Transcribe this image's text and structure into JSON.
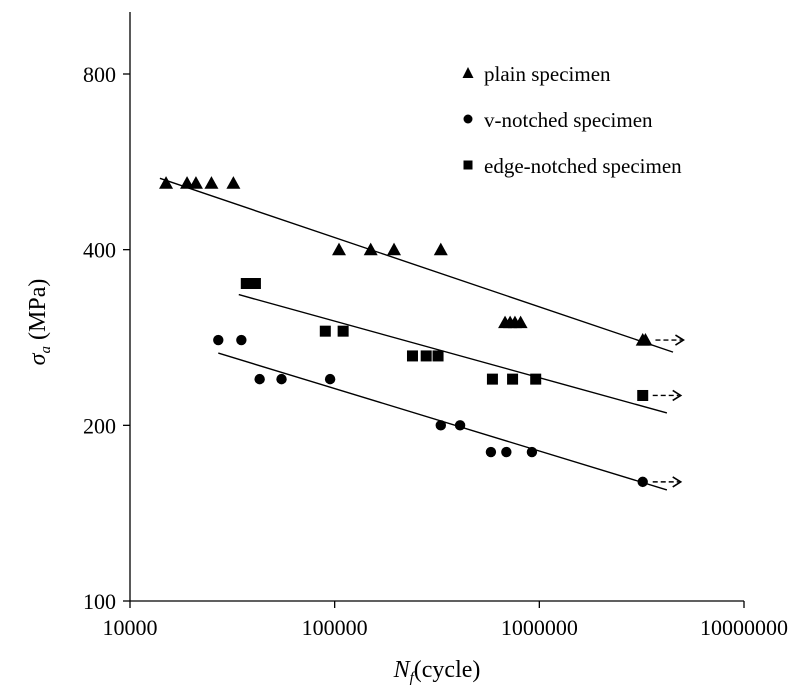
{
  "chart_data": {
    "type": "scatter",
    "x_scale": "log",
    "y_scale": "log",
    "xlim": [
      10000,
      10000000
    ],
    "ylim": [
      100,
      1000
    ],
    "x_ticks": [
      10000,
      100000,
      1000000,
      10000000
    ],
    "x_tick_labels": [
      "10000",
      "100000",
      "1000000",
      "10000000"
    ],
    "y_ticks": [
      100,
      200,
      400,
      800
    ],
    "y_tick_labels": [
      "100",
      "200",
      "400",
      "800"
    ],
    "xlabel_main": "N",
    "xlabel_sub": "f",
    "xlabel_rest": "(cycle)",
    "ylabel_main": "σ",
    "ylabel_sub": "a",
    "ylabel_rest": " (MPa)",
    "grid": false,
    "legend_position": "top-right",
    "series": [
      {
        "name": "plain specimen",
        "marker": "triangle",
        "color": "#000000",
        "x": [
          15000,
          19000,
          21000,
          25000,
          32000,
          105000,
          150000,
          195000,
          330000,
          680000,
          720000,
          760000,
          810000,
          3200000,
          3300000
        ],
        "y": [
          520,
          520,
          520,
          520,
          520,
          400,
          400,
          400,
          400,
          300,
          300,
          300,
          300,
          280,
          280
        ],
        "fit": {
          "x": [
            14000,
            4500000
          ],
          "y": [
            530,
            267
          ]
        },
        "runout_arrow_at": {
          "x": 3300000,
          "y": 280
        }
      },
      {
        "name": "v-notched specimen",
        "marker": "circle",
        "color": "#000000",
        "x": [
          27000,
          35000,
          43000,
          55000,
          95000,
          330000,
          410000,
          580000,
          690000,
          920000,
          3200000
        ],
        "y": [
          280,
          280,
          240,
          240,
          240,
          200,
          200,
          180,
          180,
          180,
          160
        ],
        "fit": {
          "x": [
            27000,
            4200000
          ],
          "y": [
            266,
            155
          ]
        },
        "runout_arrow_at": {
          "x": 3200000,
          "y": 160
        }
      },
      {
        "name": "edge-notched specimen",
        "marker": "square",
        "color": "#000000",
        "x": [
          37000,
          39000,
          41000,
          90000,
          110000,
          240000,
          280000,
          320000,
          590000,
          740000,
          960000,
          3200000
        ],
        "y": [
          350,
          350,
          350,
          290,
          290,
          263,
          263,
          263,
          240,
          240,
          240,
          225
        ],
        "fit": {
          "x": [
            34000,
            4200000
          ],
          "y": [
            335,
            210
          ]
        },
        "runout_arrow_at": {
          "x": 3200000,
          "y": 225
        }
      }
    ]
  }
}
